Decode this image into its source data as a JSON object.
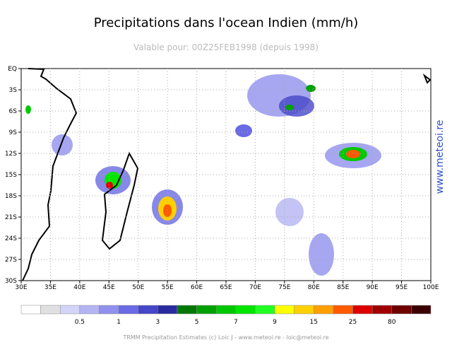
{
  "title": "Precipitations dans l'ocean Indien (mm/h)",
  "subtitle": "Valable pour: 00Z25FEB1998 (depuis 1998)",
  "watermark": "www.meteoi.re",
  "footer": "TRMM Precipitation Estimates (c) Loic J - www.meteoi.re - loic@meteoi.re",
  "map": {
    "lon_labels": [
      "30E",
      "35E",
      "40E",
      "45E",
      "50E",
      "55E",
      "60E",
      "65E",
      "70E",
      "75E",
      "80E",
      "85E",
      "90E",
      "95E",
      "100E"
    ],
    "lat_labels": [
      "EQ",
      "3S",
      "6S",
      "9S",
      "12S",
      "15S",
      "18S",
      "21S",
      "24S",
      "27S",
      "30S"
    ]
  },
  "colorbar": {
    "colors": [
      "#ffffff",
      "#e0e0e0",
      "#d4d4f8",
      "#b4b4f4",
      "#9090ee",
      "#6a6ae4",
      "#4646c8",
      "#2a2aa0",
      "#007800",
      "#00a000",
      "#00c800",
      "#00e600",
      "#22ff22",
      "#ffff00",
      "#ffd000",
      "#ffa000",
      "#ff5a00",
      "#dc0000",
      "#a00000",
      "#6e0000",
      "#3c0000"
    ],
    "labels": [
      "0.5",
      "1",
      "3",
      "5",
      "7",
      "9",
      "15",
      "25",
      "80"
    ]
  }
}
